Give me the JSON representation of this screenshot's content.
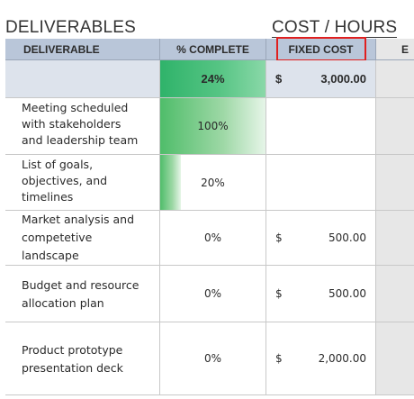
{
  "sections": {
    "deliverables_title": "DELIVERABLES",
    "cost_title": "COST / HOURS"
  },
  "headers": {
    "deliverable": "DELIVERABLE",
    "percent_complete": "% COMPLETE",
    "fixed_cost": "FIXED COST",
    "next_col_partial": "E"
  },
  "summary": {
    "percent": "24%",
    "percent_value": 0.24,
    "currency": "$",
    "fixed_cost": "3,000.00"
  },
  "rows": [
    {
      "desc": [
        "Meeting scheduled",
        "with stakeholders",
        "and leadership team"
      ],
      "percent": "100%",
      "percent_value": 1.0,
      "currency": "",
      "fixed_cost": ""
    },
    {
      "desc": [
        "List of goals,",
        "objectives, and",
        "timelines"
      ],
      "percent": "20%",
      "percent_value": 0.2,
      "currency": "",
      "fixed_cost": ""
    },
    {
      "desc": [
        "Market analysis and",
        "competetive",
        "landscape"
      ],
      "percent": "0%",
      "percent_value": 0.0,
      "currency": "$",
      "fixed_cost": "500.00"
    },
    {
      "desc": [
        "Budget and resource",
        "allocation plan"
      ],
      "percent": "0%",
      "percent_value": 0.0,
      "currency": "$",
      "fixed_cost": "500.00"
    },
    {
      "desc": [
        "Product prototype",
        "presentation deck"
      ],
      "percent": "0%",
      "percent_value": 0.0,
      "currency": "$",
      "fixed_cost": "2,000.00"
    }
  ],
  "colors": {
    "header_bg": "#b9c6d9",
    "summary_bg": "#dde3ec",
    "progress_green": "#4fbd6a",
    "highlight_red": "#e02020"
  }
}
